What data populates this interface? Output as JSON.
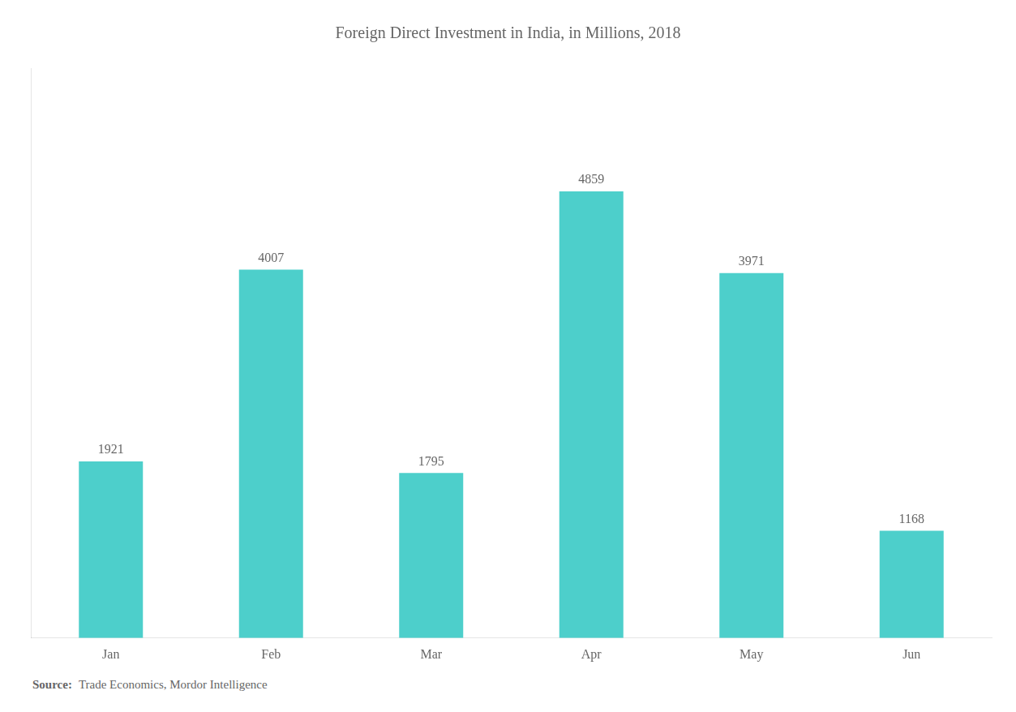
{
  "chart_data": {
    "type": "bar",
    "title": "Foreign Direct Investment in India, in Millions, 2018",
    "categories": [
      "Jan",
      "Feb",
      "Mar",
      "Apr",
      "May",
      "Jun"
    ],
    "values": [
      1921,
      4007,
      1795,
      4859,
      3971,
      1168
    ],
    "color": "#4DCFCB",
    "ylim": [
      0,
      6200
    ],
    "grid": false,
    "data_labels": true,
    "tick_labels": "x",
    "annotations": [
      "Source:",
      "Trade Economics, Mordor Intelligence"
    ]
  }
}
